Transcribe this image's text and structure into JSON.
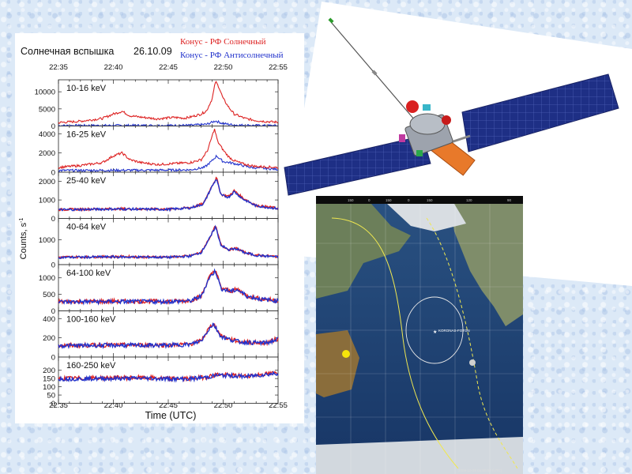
{
  "chart_data": {
    "type": "line",
    "title": "Солнечная вспышка",
    "date": "26.10.09",
    "legend": [
      {
        "label": "Конус - РФ Солнечный",
        "color": "#dd2222"
      },
      {
        "label": "Конус - РФ  Антисолнечный",
        "color": "#2233cc"
      }
    ],
    "xlabel": "Time (UTC)",
    "ylabel": "Counts, s",
    "ylabel_sup": "-1",
    "x_ticks": [
      "22:35",
      "22:40",
      "22:45",
      "22:50",
      "22:55"
    ],
    "x_range_min": [
      0,
      20
    ],
    "panels": [
      {
        "band": "10-16 keV",
        "ylim": [
          0,
          13500
        ],
        "y_ticks": [
          {
            "v": 0,
            "l": "0"
          },
          {
            "v": 5000,
            "l": "5000"
          },
          {
            "v": 10000,
            "l": "10000"
          }
        ],
        "series": [
          {
            "name": "Конус - РФ Солнечный",
            "x": [
              0,
              2,
              4,
              5,
              5.8,
              6.5,
              7.5,
              9,
              10.5,
              11.5,
              12,
              13,
              13.5,
              14,
              14.3,
              14.6,
              15,
              15.5,
              16,
              17,
              18,
              19,
              20
            ],
            "y": [
              1000,
              1400,
              2200,
              3500,
              4300,
              3000,
              2600,
              2100,
              2500,
              2300,
              2600,
              3500,
              4500,
              8000,
              13000,
              11500,
              8000,
              5500,
              3500,
              2200,
              1600,
              1300,
              1100
            ]
          },
          {
            "name": "Конус - РФ  Антисолнечный",
            "x": [
              0,
              5,
              10,
              12,
              13.5,
              14.3,
              15,
              16,
              18,
              20
            ],
            "y": [
              100,
              150,
              150,
              200,
              500,
              1500,
              700,
              300,
              150,
              100
            ]
          }
        ]
      },
      {
        "band": "16-25 keV",
        "ylim": [
          0,
          4800
        ],
        "y_ticks": [
          {
            "v": 0,
            "l": "0"
          },
          {
            "v": 2000,
            "l": "2000"
          },
          {
            "v": 4000,
            "l": "4000"
          }
        ],
        "series": [
          {
            "name": "Конус - РФ Солнечный",
            "x": [
              0,
              2,
              4,
              5,
              5.8,
              6.5,
              7.5,
              9,
              10.5,
              12,
              13,
              13.6,
              14.2,
              14.5,
              15,
              15.5,
              16,
              17,
              18,
              20
            ],
            "y": [
              500,
              700,
              1000,
              1700,
              2000,
              1300,
              1000,
              800,
              900,
              1000,
              1300,
              2300,
              4500,
              3200,
              2300,
              1600,
              1200,
              800,
              600,
              500
            ]
          },
          {
            "name": "Конус - РФ  Антисолнечный",
            "x": [
              0,
              5,
              10,
              12,
              13.3,
              14,
              14.4,
              15,
              15.6,
              16.4,
              17.5,
              20
            ],
            "y": [
              180,
              200,
              220,
              250,
              500,
              1200,
              1700,
              1100,
              1000,
              800,
              500,
              300
            ]
          }
        ]
      },
      {
        "band": "25-40 keV",
        "ylim": [
          0,
          2500
        ],
        "y_ticks": [
          {
            "v": 0,
            "l": "0"
          },
          {
            "v": 1000,
            "l": "1000"
          },
          {
            "v": 2000,
            "l": "2000"
          }
        ],
        "series": [
          {
            "name": "Конус - РФ Солнечный",
            "x": [
              0,
              5,
              10,
              12,
              13.2,
              14,
              14.4,
              14.8,
              15.5,
              16,
              16.8,
              18,
              20
            ],
            "y": [
              480,
              520,
              500,
              580,
              800,
              1800,
              2200,
              1300,
              1200,
              1500,
              1100,
              700,
              550
            ]
          },
          {
            "name": "Конус - РФ  Антисолнечный",
            "x": [
              0,
              5,
              10,
              12,
              13.2,
              14,
              14.4,
              14.8,
              15.5,
              16,
              16.8,
              18,
              20
            ],
            "y": [
              470,
              510,
              490,
              570,
              780,
              1750,
              2150,
              1250,
              1150,
              1450,
              1050,
              680,
              530
            ]
          }
        ]
      },
      {
        "band": "40-64 keV",
        "ylim": [
          0,
          1850
        ],
        "y_ticks": [
          {
            "v": 0,
            "l": "0"
          },
          {
            "v": 1000,
            "l": "1000"
          }
        ],
        "series": [
          {
            "name": "Конус - РФ Солнечный",
            "x": [
              0,
              5,
              10,
              12,
              13,
              13.8,
              14.3,
              14.8,
              15.5,
              16.2,
              17,
              18,
              20
            ],
            "y": [
              300,
              320,
              300,
              350,
              500,
              1100,
              1550,
              800,
              600,
              650,
              480,
              380,
              320
            ]
          },
          {
            "name": "Конус - РФ  Антисолнечный",
            "x": [
              0,
              5,
              10,
              12,
              13,
              13.8,
              14.3,
              14.8,
              15.5,
              16.2,
              17,
              18,
              20
            ],
            "y": [
              290,
              310,
              295,
              340,
              490,
              1080,
              1520,
              780,
              590,
              640,
              470,
              370,
              310
            ]
          }
        ]
      },
      {
        "band": "64-100 keV",
        "ylim": [
          0,
          1400
        ],
        "y_ticks": [
          {
            "v": 0,
            "l": "0"
          },
          {
            "v": 500,
            "l": "500"
          },
          {
            "v": 1000,
            "l": "1000"
          }
        ],
        "series": [
          {
            "name": "Конус - РФ Солнечный",
            "x": [
              0,
              5,
              10,
              12,
              13,
              13.7,
              14.3,
              14.8,
              15.6,
              16.3,
              17.2,
              18.5,
              20
            ],
            "y": [
              280,
              290,
              290,
              310,
              450,
              1000,
              1250,
              700,
              600,
              650,
              450,
              360,
              310
            ]
          },
          {
            "name": "Конус - РФ  Антисолнечный",
            "x": [
              0,
              5,
              10,
              12,
              13,
              13.7,
              14.3,
              14.8,
              15.6,
              16.3,
              17.2,
              18.5,
              20
            ],
            "y": [
              270,
              280,
              280,
              300,
              440,
              980,
              1220,
              680,
              590,
              640,
              440,
              350,
              300
            ]
          }
        ]
      },
      {
        "band": "100-160 keV",
        "ylim": [
          0,
          480
        ],
        "y_ticks": [
          {
            "v": 0,
            "l": "0"
          },
          {
            "v": 200,
            "l": "200"
          },
          {
            "v": 400,
            "l": "400"
          }
        ],
        "series": [
          {
            "name": "Конус - РФ Солнечный",
            "x": [
              0,
              5,
              10,
              12,
              13,
              13.6,
              14.1,
              14.8,
              15.5,
              16.5,
              18,
              19,
              20
            ],
            "y": [
              120,
              125,
              125,
              135,
              170,
              280,
              350,
              220,
              190,
              160,
              150,
              150,
              190
            ]
          },
          {
            "name": "Конус - РФ  Антисолнечный",
            "x": [
              0,
              5,
              10,
              12,
              13,
              13.6,
              14.1,
              14.8,
              15.5,
              16.5,
              18,
              19,
              20
            ],
            "y": [
              118,
              122,
              122,
              132,
              168,
              275,
              345,
              215,
              186,
              158,
              148,
              148,
              185
            ]
          }
        ]
      },
      {
        "band": "160-250 keV",
        "ylim": [
          0,
          280
        ],
        "y_ticks": [
          {
            "v": 0,
            "l": "0"
          },
          {
            "v": 50,
            "l": "50"
          },
          {
            "v": 100,
            "l": "100"
          },
          {
            "v": 150,
            "l": "150"
          },
          {
            "v": 200,
            "l": "200"
          }
        ],
        "series": [
          {
            "name": "Конус - РФ Солнечный",
            "x": [
              0,
              5,
              8,
              10,
              12,
              13.5,
              14.5,
              15.5,
              17,
              18.5,
              20
            ],
            "y": [
              150,
              155,
              155,
              150,
              150,
              160,
              175,
              170,
              165,
              175,
              185
            ]
          },
          {
            "name": "Конус - РФ  Антисолнечный",
            "x": [
              0,
              5,
              8,
              10,
              12,
              13.5,
              14.5,
              15.5,
              17,
              18.5,
              20
            ],
            "y": [
              148,
              150,
              152,
              148,
              148,
              158,
              170,
              168,
              162,
              172,
              182
            ]
          }
        ]
      }
    ]
  },
  "map": {
    "label": "KORONAS-FOTON",
    "timestamp": "2009-10-26 01:50:00 (UTC)",
    "top_ticks": [
      "150",
      "0",
      "150",
      "0",
      "150",
      "120",
      "90"
    ]
  },
  "colors": {
    "solar": "#dd2222",
    "antisolar": "#2233cc",
    "panel_blue": "#1e2f85",
    "orbit": "#f0e850",
    "ocean": "#1d3d6e"
  }
}
